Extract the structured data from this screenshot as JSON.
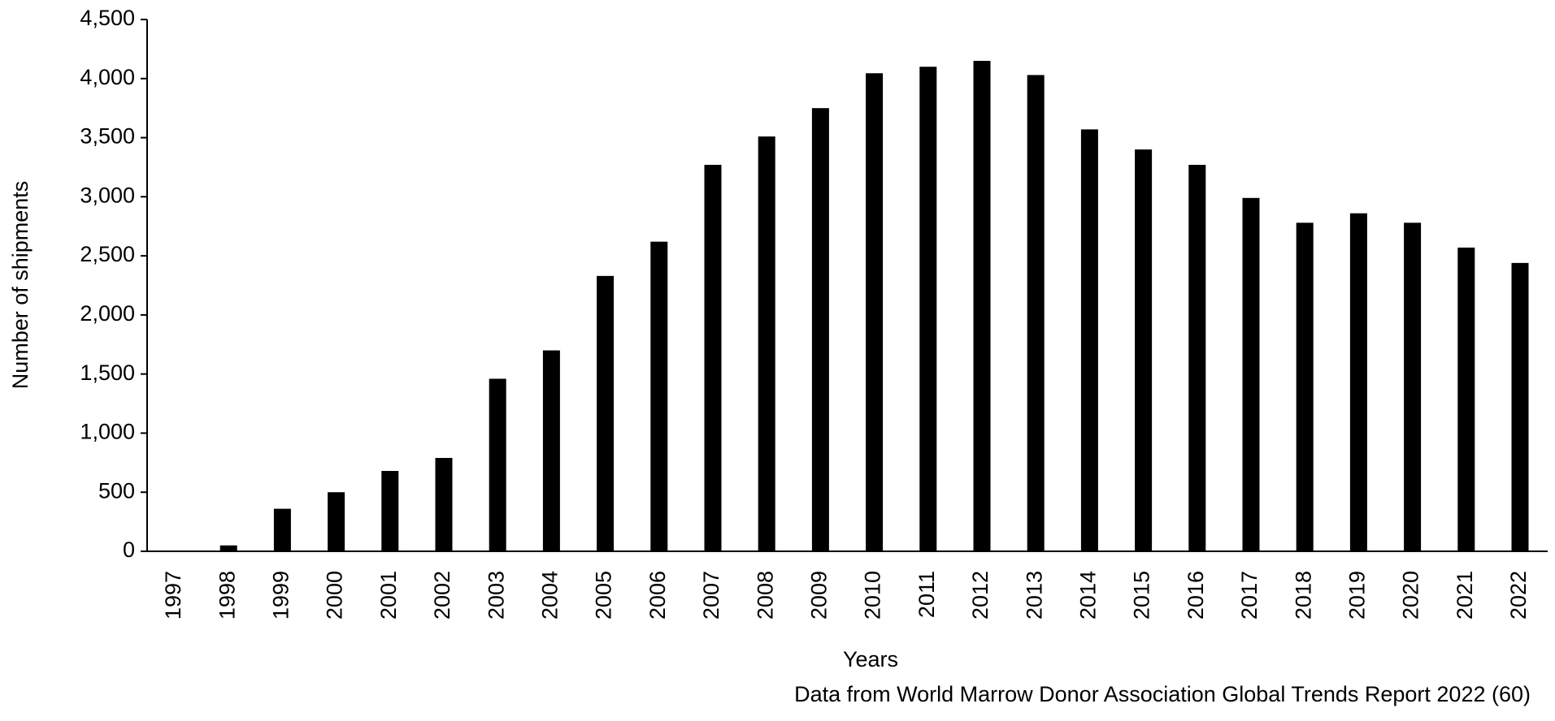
{
  "chart_data": {
    "type": "bar",
    "x_label": "Years",
    "y_label": "Number of shipments",
    "note": "Data from World Marrow Donor Association Global Trends Report 2022 (60)",
    "categories": [
      "1997",
      "1998",
      "1999",
      "2000",
      "2001",
      "2002",
      "2003",
      "2004",
      "2005",
      "2006",
      "2007",
      "2008",
      "2009",
      "2010",
      "2011",
      "2012",
      "2013",
      "2014",
      "2015",
      "2016",
      "2017",
      "2018",
      "2019",
      "2020",
      "2021",
      "2022"
    ],
    "values": [
      0,
      50,
      360,
      500,
      680,
      790,
      1460,
      1700,
      2330,
      2620,
      3270,
      3510,
      3750,
      4045,
      4100,
      4150,
      4030,
      3570,
      3400,
      3270,
      2990,
      2780,
      2860,
      2780,
      2570,
      2440
    ],
    "color": "#000000",
    "ylim": [
      0,
      4500
    ],
    "yticks": [
      0,
      500,
      {
        "value": 1000,
        "label": "1,000"
      },
      {
        "value": 1500,
        "label": "1,500"
      },
      {
        "value": 2000,
        "label": "2,000"
      },
      {
        "value": 2500,
        "label": "2,500"
      },
      {
        "value": 3000,
        "label": "3,000"
      },
      {
        "value": 3500,
        "label": "3,500"
      },
      {
        "value": 4000,
        "label": "4,000"
      },
      {
        "value": 4500,
        "label": "4,500"
      }
    ],
    "grid": false
  }
}
